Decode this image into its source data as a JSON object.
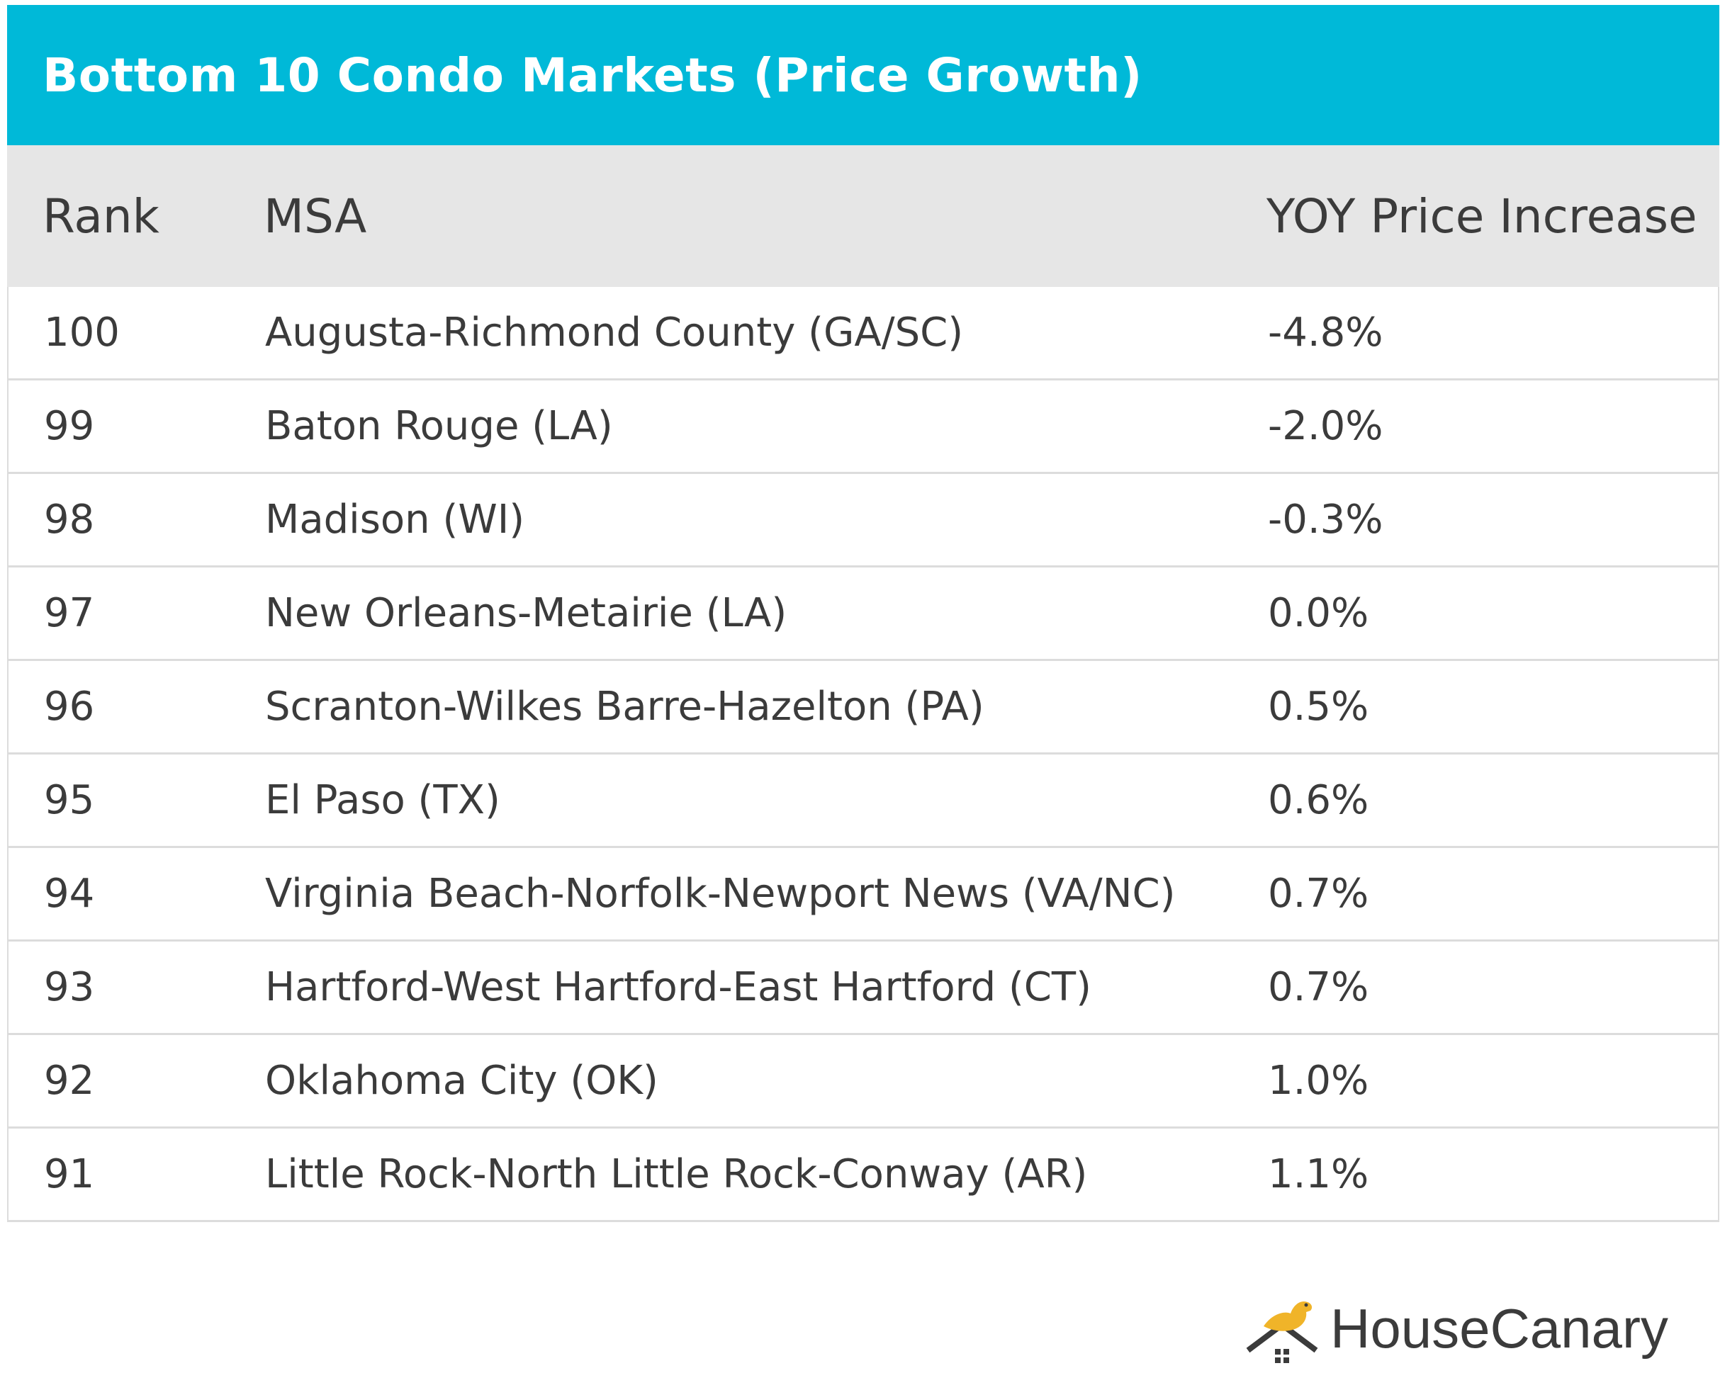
{
  "colors": {
    "title_bg": "#00b9d8",
    "header_bg": "#e6e6e6",
    "text": "#3b3b3b",
    "logo_bird": "#f0b429"
  },
  "chart_data": {
    "type": "table",
    "title": "Bottom 10 Condo Markets (Price Growth)",
    "columns": [
      "Rank",
      "MSA",
      "YOY Price Increase"
    ],
    "rows": [
      {
        "rank": "100",
        "msa": "Augusta-Richmond County (GA/SC)",
        "yoy": "-4.8%"
      },
      {
        "rank": "99",
        "msa": "Baton Rouge (LA)",
        "yoy": "-2.0%"
      },
      {
        "rank": "98",
        "msa": "Madison (WI)",
        "yoy": "-0.3%"
      },
      {
        "rank": "97",
        "msa": "New Orleans-Metairie (LA)",
        "yoy": "0.0%"
      },
      {
        "rank": "96",
        "msa": "Scranton-Wilkes Barre-Hazelton (PA)",
        "yoy": "0.5%"
      },
      {
        "rank": "95",
        "msa": "El Paso (TX)",
        "yoy": "0.6%"
      },
      {
        "rank": "94",
        "msa": "Virginia Beach-Norfolk-Newport News (VA/NC)",
        "yoy": "0.7%"
      },
      {
        "rank": "93",
        "msa": "Hartford-West Hartford-East Hartford (CT)",
        "yoy": "0.7%"
      },
      {
        "rank": "92",
        "msa": "Oklahoma City (OK)",
        "yoy": "1.0%"
      },
      {
        "rank": "91",
        "msa": "Little Rock-North Little Rock-Conway (AR)",
        "yoy": "1.1%"
      }
    ]
  },
  "logo": {
    "text": "HouseCanary",
    "icon": "canary-house-icon"
  }
}
